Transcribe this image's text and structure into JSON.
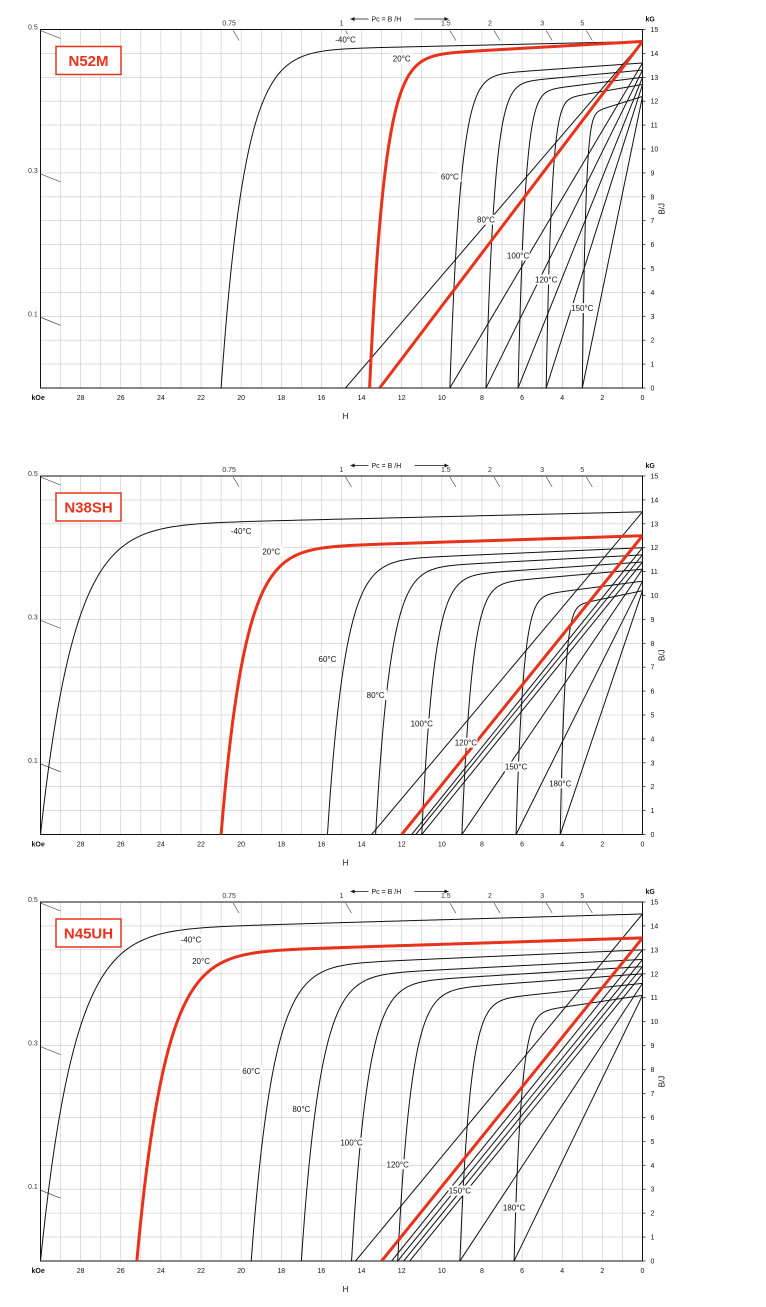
{
  "chart_data": [
    {
      "type": "line",
      "grade": "N52M",
      "pc_header": "Pc = B /H",
      "x_unit": "kOe",
      "xlabel": "H",
      "y_unit": "kG",
      "ylabel": "B/J",
      "x_ticks": [
        "28",
        "26",
        "24",
        "22",
        "20",
        "18",
        "16",
        "14",
        "12",
        "10",
        "8",
        "6",
        "4",
        "2",
        "0"
      ],
      "y_ticks": [
        "0",
        "1",
        "2",
        "3",
        "4",
        "5",
        "6",
        "7",
        "8",
        "9",
        "10",
        "11",
        "12",
        "13",
        "14",
        "15"
      ],
      "pc_top_labels": [
        {
          "label": "0.75",
          "h": 20.6
        },
        {
          "label": "1",
          "h": 15.0
        },
        {
          "label": "1.5",
          "h": 9.8
        },
        {
          "label": "2",
          "h": 7.6
        },
        {
          "label": "3",
          "h": 5.0
        },
        {
          "label": "5",
          "h": 3.0
        }
      ],
      "pc_left_labels": [
        {
          "label": "0.5",
          "b": 15.0
        },
        {
          "label": "0.3",
          "b": 9.0
        },
        {
          "label": "0.1",
          "b": 3.0
        }
      ],
      "xlim": [
        30,
        0
      ],
      "ylim": [
        0,
        15
      ],
      "grid": true,
      "series": [
        {
          "temp": "-40°C",
          "br": 14.5,
          "hcj": 21.0,
          "bslope": 0.0,
          "bhc": 14.8,
          "jslope": 0.028,
          "label": "-40°C",
          "label_h": 14.8,
          "label_y": 14.55,
          "highlight": false
        },
        {
          "temp": "20°C",
          "br": 14.5,
          "hcj": 13.6,
          "bslope": 0.0,
          "bhc": 13.1,
          "jslope": 0.045,
          "label": "20°C",
          "label_h": 12.0,
          "label_y": 13.75,
          "highlight": true
        },
        {
          "temp": "60°C",
          "br": 13.6,
          "hcj": 9.6,
          "bslope": 0.0,
          "bhc": 9.6,
          "jslope": 0.042,
          "label": "60°C",
          "label_h": 9.6,
          "label_y": 8.8,
          "highlight": false
        },
        {
          "temp": "80°C",
          "br": 13.3,
          "hcj": 7.8,
          "bslope": 0.0,
          "bhc": 7.8,
          "jslope": 0.045,
          "label": "80°C",
          "label_h": 7.8,
          "label_y": 7.0,
          "highlight": false
        },
        {
          "temp": "100°C",
          "br": 13.0,
          "hcj": 6.2,
          "bslope": 0.0,
          "bhc": 6.2,
          "jslope": 0.05,
          "label": "100°C",
          "label_h": 6.2,
          "label_y": 5.5,
          "highlight": false
        },
        {
          "temp": "120°C",
          "br": 12.7,
          "hcj": 4.8,
          "bslope": 0.0,
          "bhc": 4.8,
          "jslope": 0.055,
          "label": "120°C",
          "label_h": 4.8,
          "label_y": 4.5,
          "highlight": false
        },
        {
          "temp": "150°C",
          "br": 12.2,
          "hcj": 3.0,
          "bslope": 0.0,
          "bhc": 3.0,
          "jslope": 0.065,
          "label": "150°C",
          "label_h": 3.0,
          "label_y": 3.3,
          "highlight": false
        }
      ]
    },
    {
      "type": "line",
      "grade": "N38SH",
      "pc_header": "Pc = B /H",
      "x_unit": "kOe",
      "xlabel": "H",
      "y_unit": "kG",
      "ylabel": "B/J",
      "x_ticks": [
        "28",
        "26",
        "24",
        "22",
        "20",
        "18",
        "16",
        "14",
        "12",
        "10",
        "8",
        "6",
        "4",
        "2",
        "0"
      ],
      "y_ticks": [
        "0",
        "1",
        "2",
        "3",
        "4",
        "5",
        "6",
        "7",
        "8",
        "9",
        "10",
        "11",
        "12",
        "13",
        "14",
        "15"
      ],
      "pc_top_labels": [
        {
          "label": "0.75",
          "h": 20.6
        },
        {
          "label": "1",
          "h": 15.0
        },
        {
          "label": "1.5",
          "h": 9.8
        },
        {
          "label": "2",
          "h": 7.6
        },
        {
          "label": "3",
          "h": 5.0
        },
        {
          "label": "5",
          "h": 3.0
        }
      ],
      "pc_left_labels": [
        {
          "label": "0.5",
          "b": 15.0
        },
        {
          "label": "0.3",
          "b": 9.0
        },
        {
          "label": "0.1",
          "b": 3.0
        }
      ],
      "xlim": [
        30,
        0
      ],
      "ylim": [
        0,
        15
      ],
      "grid": true,
      "series": [
        {
          "temp": "-40°C",
          "br": 13.5,
          "hcj": 30.0,
          "bslope": 0.0,
          "bhc": 13.5,
          "jslope": 0.045,
          "label": "-40°C",
          "label_h": 20.0,
          "label_y": 12.65,
          "highlight": false
        },
        {
          "temp": "20°C",
          "br": 12.5,
          "hcj": 21.0,
          "bslope": 0.0,
          "bhc": 12.0,
          "jslope": 0.045,
          "label": "20°C",
          "label_h": 18.5,
          "label_y": 11.8,
          "highlight": true
        },
        {
          "temp": "60°C",
          "br": 12.0,
          "hcj": 15.7,
          "bslope": 0.0,
          "bhc": 11.5,
          "jslope": 0.048,
          "label": "60°C",
          "label_h": 15.7,
          "label_y": 7.3,
          "highlight": false
        },
        {
          "temp": "80°C",
          "br": 11.7,
          "hcj": 13.3,
          "bslope": 0.0,
          "bhc": 11.3,
          "jslope": 0.05,
          "label": "80°C",
          "label_h": 13.3,
          "label_y": 5.8,
          "highlight": false
        },
        {
          "temp": "100°C",
          "br": 11.4,
          "hcj": 11.0,
          "bslope": 0.0,
          "bhc": 11.0,
          "jslope": 0.055,
          "label": "100°C",
          "label_h": 11.0,
          "label_y": 4.6,
          "highlight": false
        },
        {
          "temp": "120°C",
          "br": 11.1,
          "hcj": 9.0,
          "bslope": 0.0,
          "bhc": 9.0,
          "jslope": 0.06,
          "label": "120°C",
          "label_h": 8.8,
          "label_y": 3.8,
          "highlight": false
        },
        {
          "temp": "150°C",
          "br": 10.6,
          "hcj": 6.3,
          "bslope": 0.0,
          "bhc": 6.3,
          "jslope": 0.065,
          "label": "150°C",
          "label_h": 6.3,
          "label_y": 2.8,
          "highlight": false
        },
        {
          "temp": "180°C",
          "br": 10.2,
          "hcj": 4.1,
          "bslope": 0.0,
          "bhc": 4.1,
          "jslope": 0.07,
          "label": "180°C",
          "label_h": 4.1,
          "label_y": 2.1,
          "highlight": false
        }
      ]
    },
    {
      "type": "line",
      "grade": "N45UH",
      "pc_header": "Pc = B /H",
      "x_unit": "kOe",
      "xlabel": "H",
      "y_unit": "kG",
      "ylabel": "B/J",
      "x_ticks": [
        "28",
        "26",
        "24",
        "22",
        "20",
        "18",
        "16",
        "14",
        "12",
        "10",
        "8",
        "6",
        "4",
        "2",
        "0"
      ],
      "y_ticks": [
        "0",
        "1",
        "2",
        "3",
        "4",
        "5",
        "6",
        "7",
        "8",
        "9",
        "10",
        "11",
        "12",
        "13",
        "14",
        "15"
      ],
      "pc_top_labels": [
        {
          "label": "0.75",
          "h": 20.6
        },
        {
          "label": "1",
          "h": 15.0
        },
        {
          "label": "1.5",
          "h": 9.8
        },
        {
          "label": "2",
          "h": 7.6
        },
        {
          "label": "3",
          "h": 5.0
        },
        {
          "label": "5",
          "h": 3.0
        }
      ],
      "pc_left_labels": [
        {
          "label": "0.5",
          "b": 15.0
        },
        {
          "label": "0.3",
          "b": 9.0
        },
        {
          "label": "0.1",
          "b": 3.0
        }
      ],
      "xlim": [
        30,
        0
      ],
      "ylim": [
        0,
        15
      ],
      "grid": true,
      "series": [
        {
          "temp": "-40°C",
          "br": 14.5,
          "hcj": 30.0,
          "bslope": 0.0,
          "bhc": 14.3,
          "jslope": 0.05,
          "label": "-40°C",
          "label_h": 22.5,
          "label_y": 13.4,
          "highlight": false
        },
        {
          "temp": "20°C",
          "br": 13.5,
          "hcj": 25.2,
          "bslope": 0.0,
          "bhc": 13.0,
          "jslope": 0.05,
          "label": "20°C",
          "label_h": 22.0,
          "label_y": 12.5,
          "highlight": true
        },
        {
          "temp": "60°C",
          "br": 13.0,
          "hcj": 19.5,
          "bslope": 0.0,
          "bhc": 12.5,
          "jslope": 0.055,
          "label": "60°C",
          "label_h": 19.5,
          "label_y": 7.9,
          "highlight": false
        },
        {
          "temp": "80°C",
          "br": 12.6,
          "hcj": 17.0,
          "bslope": 0.0,
          "bhc": 12.2,
          "jslope": 0.058,
          "label": "80°C",
          "label_h": 17.0,
          "label_y": 6.3,
          "highlight": false
        },
        {
          "temp": "100°C",
          "br": 12.3,
          "hcj": 14.5,
          "bslope": 0.0,
          "bhc": 11.9,
          "jslope": 0.06,
          "label": "100°C",
          "label_h": 14.5,
          "label_y": 4.9,
          "highlight": false
        },
        {
          "temp": "120°C",
          "br": 12.0,
          "hcj": 12.2,
          "bslope": 0.0,
          "bhc": 11.6,
          "jslope": 0.063,
          "label": "120°C",
          "label_h": 12.2,
          "label_y": 4.0,
          "highlight": false
        },
        {
          "temp": "150°C",
          "br": 11.6,
          "hcj": 9.1,
          "bslope": 0.0,
          "bhc": 9.1,
          "jslope": 0.068,
          "label": "150°C",
          "label_h": 9.1,
          "label_y": 2.9,
          "highlight": false
        },
        {
          "temp": "180°C",
          "br": 11.1,
          "hcj": 6.4,
          "bslope": 0.0,
          "bhc": 6.4,
          "jslope": 0.072,
          "label": "180°C",
          "label_h": 6.4,
          "label_y": 2.2,
          "highlight": false
        }
      ]
    }
  ],
  "colors": {
    "highlight": "#e8331c",
    "curve": "#111111",
    "grid": "#c8c8c8",
    "axis": "#111111"
  }
}
